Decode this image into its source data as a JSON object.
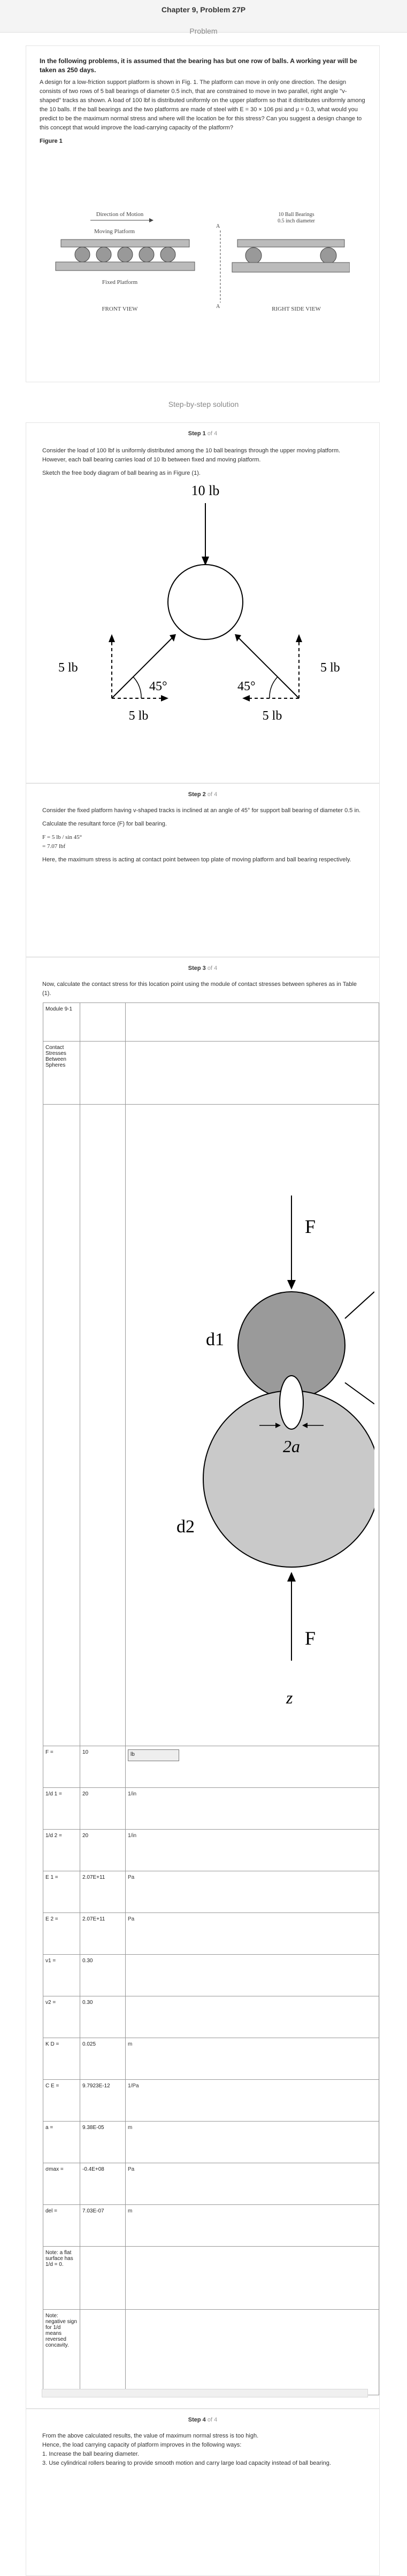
{
  "header": {
    "chapter": "Chapter 9, Problem 27P",
    "problem_label": "Problem"
  },
  "problem": {
    "lead": "In the following problems, it is assumed that the bearing has but one row of balls. A working year will be taken as 250 days.",
    "body": "A design for a low-friction support platform is shown in Fig. 1. The platform can move in only one direction. The design consists of two rows of 5 ball bearings of diameter 0.5 inch, that are constrained to move in two parallel, right angle \"v-shaped\" tracks as shown. A load of 100 lbf is distributed uniformly on the upper platform so that it distributes uniformly among the 10 balls. If the ball bearings and the two platforms are made of steel with E = 30 × 106 psi and μ = 0.3, what would you predict to be the maximum normal stress and where will the location be for this stress? Can you suggest a design change to this concept that would improve the load-carrying capacity of the platform?",
    "figure_label": "Figure 1",
    "figure": {
      "direction": "Direction of Motion",
      "moving": "Moving Platform",
      "fixed": "Fixed Platform",
      "front": "FRONT VIEW",
      "right": "RIGHT SIDE VIEW",
      "bearings": "10 Ball Bearings",
      "dia": "0.5 inch diameter",
      "a": "A"
    }
  },
  "sbs_title": "Step-by-step solution",
  "step1": {
    "head": "Step 1",
    "of": "of 4",
    "p1": "Consider the load of 100 lbf is uniformly distributed among the 10 ball bearings through the upper moving platform. However, each ball bearing carries load of 10 lb between fixed and moving platform.",
    "p2": "Sketch the free body diagram of ball bearing as in Figure (1).",
    "fbd": {
      "top": "10 lb",
      "left_v": "5 lb",
      "right_v": "5 lb",
      "left_h": "5 lb",
      "right_h": "5 lb",
      "ang_l": "45°",
      "ang_r": "45°"
    }
  },
  "step2": {
    "head": "Step 2",
    "of": "of 4",
    "p1": "Consider the fixed platform having v-shaped tracks is inclined at an angle of 45° for support ball bearing of diameter 0.5 in.",
    "p2": "Calculate the resultant force (F) for ball bearing.",
    "eq1": "F = 5 lb / sin 45°",
    "eq2": "= 7.07 lbf",
    "p3": "Here, the maximum stress is acting at contact point between top plate of moving platform and ball bearing respectively."
  },
  "step3": {
    "head": "Step 3",
    "of": "of 4",
    "p1": "Now, calculate the contact stress for this location point using the module of contact stresses between spheres as in Table (1).",
    "module": "Module 9-1",
    "module_title": "Contact Stresses Between Spheres",
    "diagram": {
      "F_top": "F",
      "F_bottom": "F",
      "d1": "d1",
      "d2": "d2",
      "twoa": "2a",
      "z": "z"
    },
    "rows": [
      {
        "label": "F =",
        "value": "10",
        "unit": "lb",
        "select": true
      },
      {
        "label": "1/d 1 =",
        "value": "20",
        "unit": "1/in"
      },
      {
        "label": "1/d 2 =",
        "value": "20",
        "unit": "1/in"
      },
      {
        "label": "E 1 =",
        "value": "2.07E+11",
        "unit": "Pa"
      },
      {
        "label": "E 2 =",
        "value": "2.07E+11",
        "unit": "Pa"
      },
      {
        "label": "ν1 =",
        "value": "0.30",
        "unit": ""
      },
      {
        "label": "ν2 =",
        "value": "0.30",
        "unit": ""
      },
      {
        "label": "K D =",
        "value": "0.025",
        "unit": "m"
      },
      {
        "label": "C E =",
        "value": "9.7923E-12",
        "unit": "1/Pa"
      },
      {
        "label": "a =",
        "value": "9.38E-05",
        "unit": "m"
      },
      {
        "label": "σmax =",
        "value": "-0.4E+08",
        "unit": "Pa"
      },
      {
        "label": "del =",
        "value": "7.03E-07",
        "unit": "m"
      }
    ],
    "note1": "Note: a flat surface has 1/d = 0.",
    "note2": "Note: negative sign for 1/d means reversed concavity."
  },
  "step4": {
    "head": "Step 4",
    "of": "of 4",
    "p1": "From the above calculated results, the value of maximum normal stress is too high.",
    "p2": "Hence, the load carrying capacity of platform improves in the following ways:",
    "l1": "1. Increase the ball bearing diameter.",
    "l2": "3. Use cylindrical rollers bearing to provide smooth motion and carry large load capacity instead of ball bearing."
  }
}
